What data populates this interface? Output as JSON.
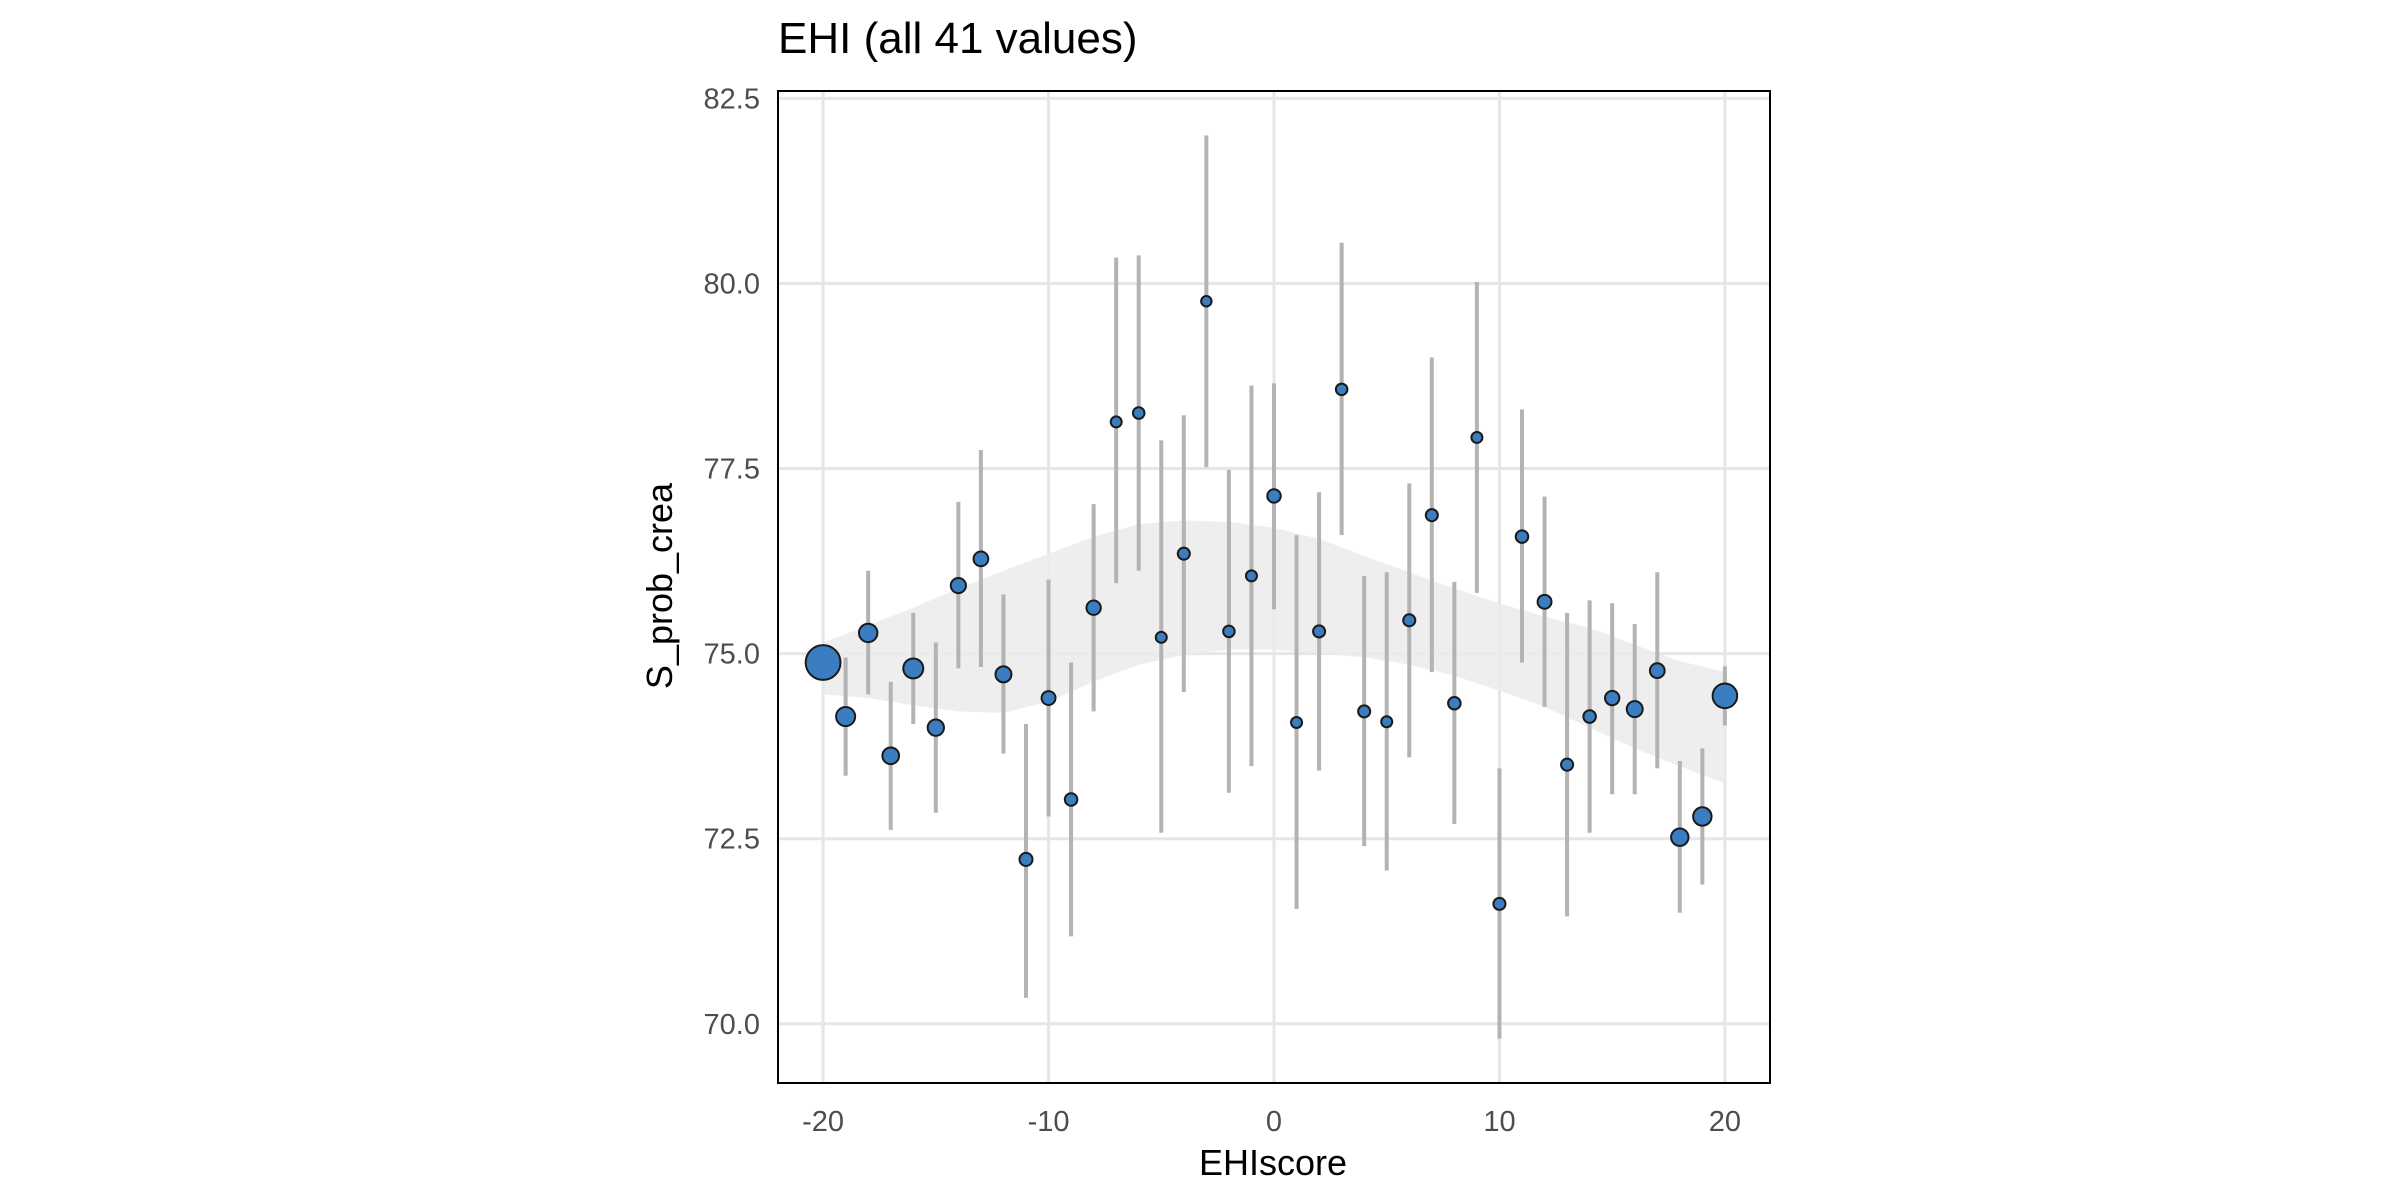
{
  "chart_data": {
    "type": "scatter",
    "title": "EHI (all 41 values)",
    "xlabel": "EHIscore",
    "ylabel": "S_prob_crea",
    "xlim": [
      -22,
      22
    ],
    "ylim": [
      69.2,
      82.6
    ],
    "xticks": [
      {
        "value": -20,
        "label": "-20"
      },
      {
        "value": -10,
        "label": "-10"
      },
      {
        "value": 0,
        "label": "0"
      },
      {
        "value": 10,
        "label": "10"
      },
      {
        "value": 20,
        "label": "20"
      }
    ],
    "yticks": [
      {
        "value": 70.0,
        "label": "70.0"
      },
      {
        "value": 72.5,
        "label": "72.5"
      },
      {
        "value": 75.0,
        "label": "75.0"
      },
      {
        "value": 77.5,
        "label": "77.5"
      },
      {
        "value": 80.0,
        "label": "80.0"
      },
      {
        "value": 82.5,
        "label": "82.5"
      }
    ],
    "grid": true,
    "legend": "none",
    "colors": {
      "point_fill": "#3a7dc0",
      "point_stroke": "#1a1a1a",
      "errorbar": "#b3b3b3",
      "ribbon": "#ebebeb",
      "grid": "#e6e6e6",
      "frame": "#000000"
    },
    "points": [
      {
        "x": -20,
        "y": 74.88,
        "lo": 74.88,
        "hi": 74.88,
        "size": 10.0
      },
      {
        "x": -19,
        "y": 74.15,
        "lo": 73.35,
        "hi": 74.95,
        "size": 3.0
      },
      {
        "x": -18,
        "y": 75.28,
        "lo": 74.45,
        "hi": 76.12,
        "size": 2.8
      },
      {
        "x": -17,
        "y": 73.62,
        "lo": 72.62,
        "hi": 74.62,
        "size": 2.3
      },
      {
        "x": -16,
        "y": 74.8,
        "lo": 74.05,
        "hi": 75.55,
        "size": 3.3
      },
      {
        "x": -15,
        "y": 74.0,
        "lo": 72.85,
        "hi": 75.15,
        "size": 2.2
      },
      {
        "x": -14,
        "y": 75.92,
        "lo": 74.8,
        "hi": 77.05,
        "size": 1.9
      },
      {
        "x": -13,
        "y": 76.28,
        "lo": 74.82,
        "hi": 77.75,
        "size": 1.8
      },
      {
        "x": -12,
        "y": 74.72,
        "lo": 73.65,
        "hi": 75.8,
        "size": 2.1
      },
      {
        "x": -11,
        "y": 72.22,
        "lo": 70.35,
        "hi": 74.05,
        "size": 1.4
      },
      {
        "x": -10,
        "y": 74.4,
        "lo": 72.8,
        "hi": 76.0,
        "size": 1.6
      },
      {
        "x": -9,
        "y": 73.03,
        "lo": 71.18,
        "hi": 74.88,
        "size": 1.3
      },
      {
        "x": -8,
        "y": 75.62,
        "lo": 74.22,
        "hi": 77.02,
        "size": 1.7
      },
      {
        "x": -7,
        "y": 78.13,
        "lo": 75.95,
        "hi": 80.35,
        "size": 1.0
      },
      {
        "x": -6,
        "y": 78.25,
        "lo": 76.12,
        "hi": 80.38,
        "size": 1.1
      },
      {
        "x": -5,
        "y": 75.22,
        "lo": 72.58,
        "hi": 77.88,
        "size": 1.0
      },
      {
        "x": -4,
        "y": 76.35,
        "lo": 74.48,
        "hi": 78.22,
        "size": 1.2
      },
      {
        "x": -3,
        "y": 79.76,
        "lo": 77.52,
        "hi": 82.0,
        "size": 0.9
      },
      {
        "x": -2,
        "y": 75.3,
        "lo": 73.12,
        "hi": 77.48,
        "size": 1.1
      },
      {
        "x": -1,
        "y": 76.05,
        "lo": 73.48,
        "hi": 78.62,
        "size": 1.0
      },
      {
        "x": 0,
        "y": 77.13,
        "lo": 75.6,
        "hi": 78.65,
        "size": 1.5
      },
      {
        "x": 1,
        "y": 74.07,
        "lo": 71.55,
        "hi": 76.6,
        "size": 1.0
      },
      {
        "x": 2,
        "y": 75.3,
        "lo": 73.42,
        "hi": 77.18,
        "size": 1.2
      },
      {
        "x": 3,
        "y": 78.57,
        "lo": 76.6,
        "hi": 80.55,
        "size": 1.1
      },
      {
        "x": 4,
        "y": 74.22,
        "lo": 72.4,
        "hi": 76.05,
        "size": 1.2
      },
      {
        "x": 5,
        "y": 74.08,
        "lo": 72.07,
        "hi": 76.1,
        "size": 1.0
      },
      {
        "x": 6,
        "y": 75.45,
        "lo": 73.6,
        "hi": 77.3,
        "size": 1.2
      },
      {
        "x": 7,
        "y": 76.87,
        "lo": 74.75,
        "hi": 79.0,
        "size": 1.2
      },
      {
        "x": 8,
        "y": 74.33,
        "lo": 72.7,
        "hi": 75.97,
        "size": 1.3
      },
      {
        "x": 9,
        "y": 77.92,
        "lo": 75.82,
        "hi": 80.02,
        "size": 1.0
      },
      {
        "x": 10,
        "y": 71.62,
        "lo": 69.8,
        "hi": 73.45,
        "size": 1.2
      },
      {
        "x": 11,
        "y": 76.58,
        "lo": 74.88,
        "hi": 78.3,
        "size": 1.3
      },
      {
        "x": 12,
        "y": 75.7,
        "lo": 74.28,
        "hi": 77.12,
        "size": 1.6
      },
      {
        "x": 13,
        "y": 73.5,
        "lo": 71.45,
        "hi": 75.55,
        "size": 1.2
      },
      {
        "x": 14,
        "y": 74.15,
        "lo": 72.58,
        "hi": 75.72,
        "size": 1.3
      },
      {
        "x": 15,
        "y": 74.4,
        "lo": 73.1,
        "hi": 75.68,
        "size": 1.7
      },
      {
        "x": 16,
        "y": 74.25,
        "lo": 73.1,
        "hi": 75.4,
        "size": 2.1
      },
      {
        "x": 17,
        "y": 74.77,
        "lo": 73.45,
        "hi": 76.1,
        "size": 1.8
      },
      {
        "x": 18,
        "y": 72.52,
        "lo": 71.5,
        "hi": 73.55,
        "size": 2.5
      },
      {
        "x": 19,
        "y": 72.8,
        "lo": 71.88,
        "hi": 73.72,
        "size": 2.8
      },
      {
        "x": 20,
        "y": 74.43,
        "lo": 74.03,
        "hi": 74.83,
        "size": 5.0
      }
    ],
    "ribbon": [
      {
        "x": -20,
        "lo": 74.45,
        "hi": 75.15
      },
      {
        "x": -18,
        "lo": 74.4,
        "hi": 75.38
      },
      {
        "x": -16,
        "lo": 74.3,
        "hi": 75.62
      },
      {
        "x": -14,
        "lo": 74.22,
        "hi": 75.88
      },
      {
        "x": -12,
        "lo": 74.2,
        "hi": 76.12
      },
      {
        "x": -10,
        "lo": 74.35,
        "hi": 76.35
      },
      {
        "x": -8,
        "lo": 74.62,
        "hi": 76.58
      },
      {
        "x": -6,
        "lo": 74.85,
        "hi": 76.75
      },
      {
        "x": -4,
        "lo": 74.98,
        "hi": 76.8
      },
      {
        "x": -2,
        "lo": 75.05,
        "hi": 76.78
      },
      {
        "x": 0,
        "lo": 75.05,
        "hi": 76.7
      },
      {
        "x": 2,
        "lo": 75.0,
        "hi": 76.55
      },
      {
        "x": 4,
        "lo": 74.95,
        "hi": 76.32
      },
      {
        "x": 6,
        "lo": 74.85,
        "hi": 76.1
      },
      {
        "x": 8,
        "lo": 74.7,
        "hi": 75.88
      },
      {
        "x": 10,
        "lo": 74.5,
        "hi": 75.68
      },
      {
        "x": 12,
        "lo": 74.28,
        "hi": 75.5
      },
      {
        "x": 14,
        "lo": 74.0,
        "hi": 75.35
      },
      {
        "x": 16,
        "lo": 73.72,
        "hi": 75.12
      },
      {
        "x": 18,
        "lo": 73.48,
        "hi": 74.9
      },
      {
        "x": 20,
        "lo": 73.25,
        "hi": 74.75
      }
    ]
  }
}
